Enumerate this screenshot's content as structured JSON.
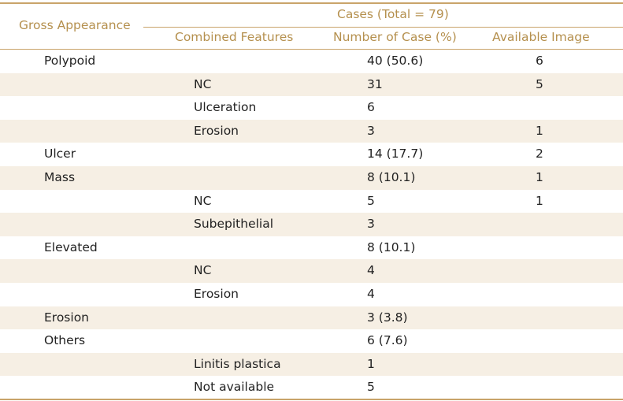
{
  "header": {
    "gross_appearance": "Gross Appearance",
    "cases_total": "Cases (Total = 79)",
    "combined_features": "Combined Features",
    "number_of_case": "Number of Case (%)",
    "available_image": "Available Image"
  },
  "rows": [
    {
      "gross": "Polypoid",
      "combined": "",
      "number": "40 (50.6)",
      "image": "6"
    },
    {
      "gross": "",
      "combined": "NC",
      "number": "31",
      "image": "5"
    },
    {
      "gross": "",
      "combined": "Ulceration",
      "number": "6",
      "image": ""
    },
    {
      "gross": "",
      "combined": "Erosion",
      "number": "3",
      "image": "1"
    },
    {
      "gross": "Ulcer",
      "combined": "",
      "number": "14 (17.7)",
      "image": "2"
    },
    {
      "gross": "Mass",
      "combined": "",
      "number": "8 (10.1)",
      "image": "1"
    },
    {
      "gross": "",
      "combined": "NC",
      "number": "5",
      "image": "1"
    },
    {
      "gross": "",
      "combined": "Subepithelial",
      "number": "3",
      "image": ""
    },
    {
      "gross": "Elevated",
      "combined": "",
      "number": "8 (10.1)",
      "image": ""
    },
    {
      "gross": "",
      "combined": "NC",
      "number": "4",
      "image": ""
    },
    {
      "gross": "",
      "combined": "Erosion",
      "number": "4",
      "image": ""
    },
    {
      "gross": "Erosion",
      "combined": "",
      "number": "3 (3.8)",
      "image": ""
    },
    {
      "gross": "Others",
      "combined": "",
      "number": "6 (7.6)",
      "image": ""
    },
    {
      "gross": "",
      "combined": "Linitis plastica",
      "number": "1",
      "image": ""
    },
    {
      "gross": "",
      "combined": "Not available",
      "number": "5",
      "image": ""
    }
  ],
  "colors": {
    "header_text": "#b5904e",
    "rule": "#c9a46a",
    "shade": "#f6efe4",
    "body_text": "#222222"
  }
}
